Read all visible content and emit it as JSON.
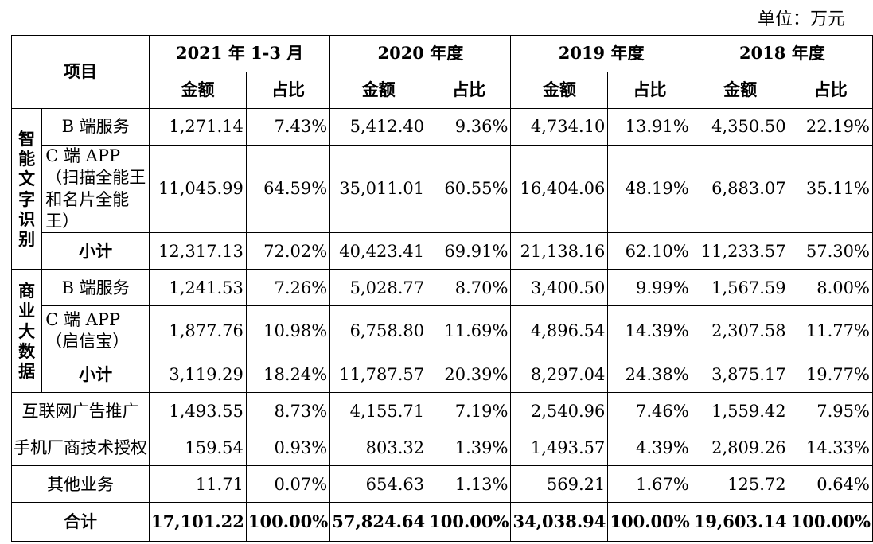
{
  "unit_label": "单位：万元",
  "header": {
    "item": "项目",
    "periods": [
      "2021 年 1-3 月",
      "2020 年度",
      "2019 年度",
      "2018 年度"
    ],
    "amount": "金额",
    "ratio": "占比"
  },
  "groups": {
    "ocr": "智能文字识别",
    "bigdata": "商业大数据"
  },
  "rows": [
    {
      "label": "B 端服务",
      "values": [
        "1,271.14",
        "7.43%",
        "5,412.40",
        "9.36%",
        "4,734.10",
        "13.91%",
        "4,350.50",
        "22.19%"
      ]
    },
    {
      "label": "C 端 APP（扫描全能王和名片全能王）",
      "values": [
        "11,045.99",
        "64.59%",
        "35,011.01",
        "60.55%",
        "16,404.06",
        "48.19%",
        "6,883.07",
        "35.11%"
      ]
    },
    {
      "label": "小计",
      "values": [
        "12,317.13",
        "72.02%",
        "40,423.41",
        "69.91%",
        "21,138.16",
        "62.10%",
        "11,233.57",
        "57.30%"
      ]
    },
    {
      "label": "B 端服务",
      "values": [
        "1,241.53",
        "7.26%",
        "5,028.77",
        "8.70%",
        "3,400.50",
        "9.99%",
        "1,567.59",
        "8.00%"
      ]
    },
    {
      "label": "C 端 APP（启信宝）",
      "values": [
        "1,877.76",
        "10.98%",
        "6,758.80",
        "11.69%",
        "4,896.54",
        "14.39%",
        "2,307.58",
        "11.77%"
      ]
    },
    {
      "label": "小计",
      "values": [
        "3,119.29",
        "18.24%",
        "11,787.57",
        "20.39%",
        "8,297.04",
        "24.38%",
        "3,875.17",
        "19.77%"
      ]
    },
    {
      "label": "互联网广告推广",
      "values": [
        "1,493.55",
        "8.73%",
        "4,155.71",
        "7.19%",
        "2,540.96",
        "7.46%",
        "1,559.42",
        "7.95%"
      ]
    },
    {
      "label": "手机厂商技术授权",
      "values": [
        "159.54",
        "0.93%",
        "803.32",
        "1.39%",
        "1,493.57",
        "4.39%",
        "2,809.26",
        "14.33%"
      ]
    },
    {
      "label": "其他业务",
      "values": [
        "11.71",
        "0.07%",
        "654.63",
        "1.13%",
        "569.21",
        "1.67%",
        "125.72",
        "0.64%"
      ]
    },
    {
      "label": "合计",
      "values": [
        "17,101.22",
        "100.00%",
        "57,824.64",
        "100.00%",
        "34,038.94",
        "100.00%",
        "19,603.14",
        "100.00%"
      ]
    }
  ]
}
